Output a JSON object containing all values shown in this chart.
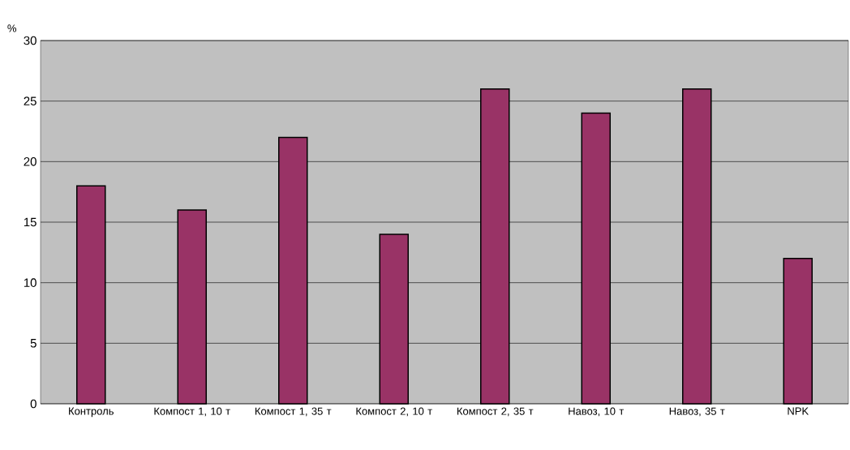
{
  "chart_data": {
    "type": "bar",
    "ylabel": "%",
    "categories": [
      "Контроль",
      "Компост 1, 10 т",
      "Компост 1, 35 т",
      "Компост 2, 10 т",
      "Компост 2, 35 т",
      "Навоз, 10 т",
      "Навоз, 35 т",
      "NPK"
    ],
    "values": [
      18,
      16,
      22,
      14,
      26,
      24,
      26,
      12
    ],
    "color": "#993366",
    "ylim": [
      0,
      30
    ],
    "yticks": [
      0,
      5,
      10,
      15,
      20,
      25,
      30
    ],
    "grid": "y"
  }
}
